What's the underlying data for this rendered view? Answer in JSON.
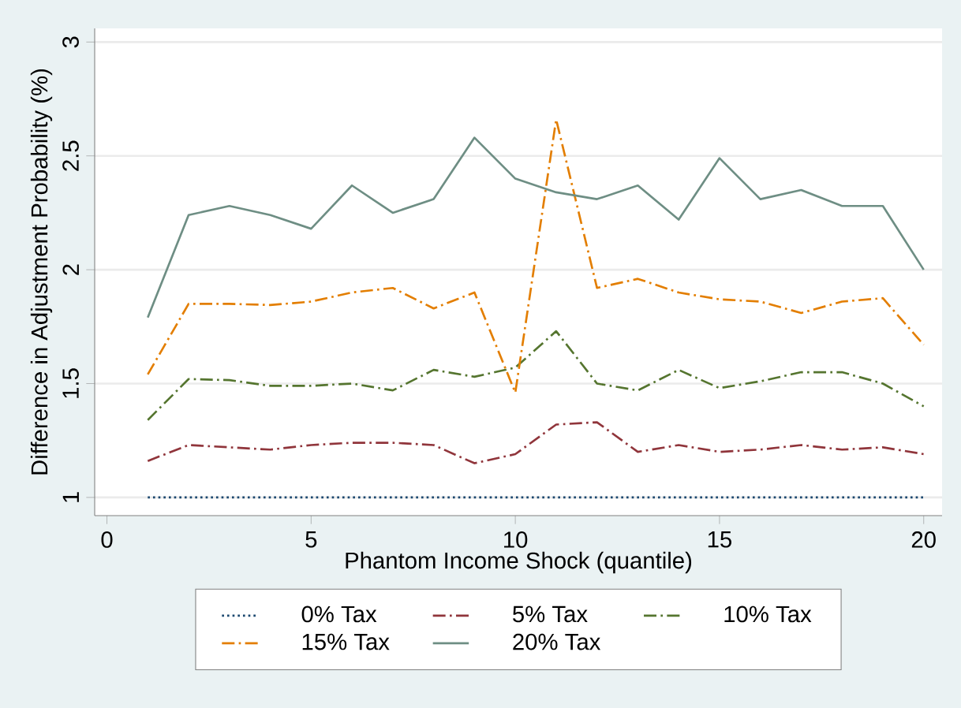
{
  "chart_data": {
    "type": "line",
    "xlabel": "Phantom Income Shock (quantile)",
    "ylabel": "Difference in Adjustment Probability (%)",
    "x": [
      1,
      2,
      3,
      4,
      5,
      6,
      7,
      8,
      9,
      10,
      11,
      12,
      13,
      14,
      15,
      16,
      17,
      18,
      19,
      20
    ],
    "xlim": [
      -0.3,
      20.45
    ],
    "ylim": [
      0.92,
      3.06
    ],
    "xticks": [
      0,
      5,
      10,
      15,
      20
    ],
    "yticks": [
      1,
      1.5,
      2,
      2.5,
      3
    ],
    "grid": "y",
    "legend": "bottom",
    "marker": "none",
    "series": [
      {
        "name": "0% Tax",
        "color": "#1a476f",
        "line_style": "dotted",
        "values": [
          1,
          1,
          1,
          1,
          1,
          1,
          1,
          1,
          1,
          1,
          1,
          1,
          1,
          1,
          1,
          1,
          1,
          1,
          1,
          1
        ]
      },
      {
        "name": "5% Tax",
        "color": "#90353b",
        "line_style": "dashed",
        "values": [
          1.16,
          1.23,
          1.22,
          1.21,
          1.23,
          1.24,
          1.24,
          1.23,
          1.15,
          1.19,
          1.32,
          1.33,
          1.2,
          1.23,
          1.2,
          1.21,
          1.23,
          1.21,
          1.22,
          1.19
        ]
      },
      {
        "name": "10% Tax",
        "color": "#55752f",
        "line_style": "dashed",
        "values": [
          1.34,
          1.52,
          1.515,
          1.49,
          1.49,
          1.5,
          1.47,
          1.56,
          1.53,
          1.57,
          1.73,
          1.5,
          1.47,
          1.56,
          1.48,
          1.51,
          1.55,
          1.55,
          1.5,
          1.4
        ]
      },
      {
        "name": "15% Tax",
        "color": "#e37e00",
        "line_style": "dashed",
        "values": [
          1.54,
          1.85,
          1.85,
          1.845,
          1.86,
          1.9,
          1.92,
          1.83,
          1.9,
          1.46,
          2.66,
          1.92,
          1.96,
          1.9,
          1.87,
          1.86,
          1.81,
          1.86,
          1.875,
          1.67
        ]
      },
      {
        "name": "20% Tax",
        "color": "#6e8e84",
        "line_style": "solid",
        "values": [
          1.79,
          2.24,
          2.28,
          2.24,
          2.18,
          2.37,
          2.25,
          2.31,
          2.58,
          2.4,
          2.34,
          2.31,
          2.37,
          2.22,
          2.49,
          2.31,
          2.35,
          2.28,
          2.28,
          2.0
        ]
      }
    ]
  }
}
